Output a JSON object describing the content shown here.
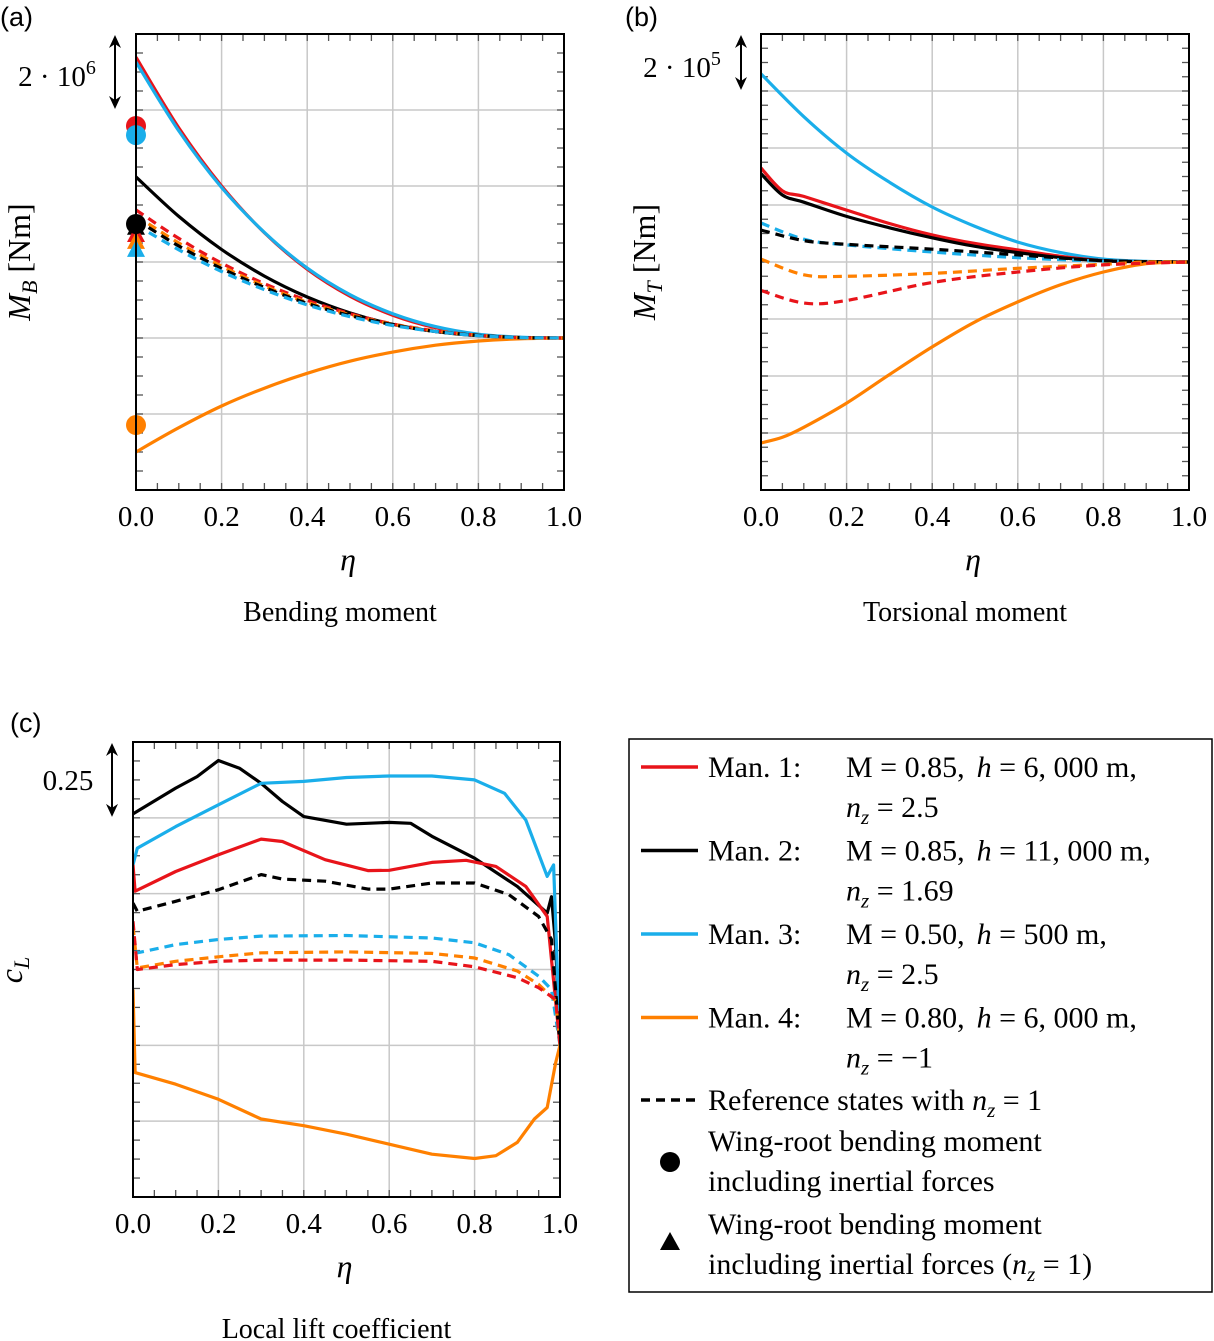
{
  "colors": {
    "man1": "#e8141a",
    "man2": "#000000",
    "man3": "#1aaeea",
    "man4": "#ff8000",
    "grid": "#c8c8c8"
  },
  "chart_data": [
    {
      "id": "a",
      "type": "line",
      "panel_label": "(a)",
      "title": "Bending moment",
      "xlabel": "η",
      "ylabel_main": "M",
      "ylabel_sub": "B",
      "ylabel_unit": " [Nm]",
      "scale_bar": {
        "base": "2 · 10",
        "exp": "6",
        "value": 2000000
      },
      "y_units": "1e6 Nm",
      "xlim": [
        0,
        1
      ],
      "ylim": [
        -4,
        8
      ],
      "ygrid_step": 2,
      "grid": true,
      "xticks": [
        "0.0",
        "0.2",
        "0.4",
        "0.6",
        "0.8",
        "1.0"
      ],
      "series": [
        {
          "name": "Man. 1",
          "color": "man1",
          "dash": false,
          "x": [
            0,
            0.1,
            0.2,
            0.3,
            0.4,
            0.5,
            0.6,
            0.7,
            0.8,
            0.9,
            1
          ],
          "y": [
            7.39,
            5.53,
            4.0,
            2.77,
            1.81,
            1.1,
            0.6,
            0.27,
            0.09,
            0.01,
            0
          ]
        },
        {
          "name": "Man. 3",
          "color": "man3",
          "dash": false,
          "x": [
            0,
            0.1,
            0.2,
            0.3,
            0.4,
            0.5,
            0.6,
            0.7,
            0.8,
            0.9,
            1
          ],
          "y": [
            7.26,
            5.45,
            3.96,
            2.78,
            1.84,
            1.14,
            0.64,
            0.3,
            0.1,
            0.02,
            0
          ]
        },
        {
          "name": "Man. 2",
          "color": "man2",
          "dash": false,
          "x": [
            0,
            0.1,
            0.2,
            0.3,
            0.4,
            0.5,
            0.6,
            0.7,
            0.8,
            0.9,
            1
          ],
          "y": [
            4.24,
            3.2,
            2.33,
            1.63,
            1.08,
            0.66,
            0.36,
            0.17,
            0.06,
            0.01,
            0
          ]
        },
        {
          "name": "Man. 4",
          "color": "man4",
          "dash": false,
          "x": [
            0,
            0.1,
            0.2,
            0.3,
            0.4,
            0.5,
            0.6,
            0.7,
            0.8,
            0.9,
            1
          ],
          "y": [
            -3.0,
            -2.36,
            -1.79,
            -1.32,
            -0.93,
            -0.61,
            -0.37,
            -0.19,
            -0.08,
            -0.02,
            0
          ]
        },
        {
          "name": "Man. 1 ref",
          "color": "man1",
          "dash": true,
          "x": [
            0,
            0.1,
            0.2,
            0.3,
            0.4,
            0.5,
            0.6,
            0.7,
            0.8,
            0.9,
            1
          ],
          "y": [
            3.37,
            2.62,
            1.97,
            1.43,
            0.99,
            0.64,
            0.37,
            0.19,
            0.07,
            0.01,
            0
          ]
        },
        {
          "name": "Man. 4 ref",
          "color": "man4",
          "dash": true,
          "x": [
            0,
            0.1,
            0.2,
            0.3,
            0.4,
            0.5,
            0.6,
            0.7,
            0.8,
            0.9,
            1
          ],
          "y": [
            3.22,
            2.5,
            1.89,
            1.37,
            0.94,
            0.61,
            0.36,
            0.18,
            0.07,
            0.01,
            0
          ]
        },
        {
          "name": "Man. 2 ref",
          "color": "man2",
          "dash": true,
          "x": [
            0,
            0.1,
            0.2,
            0.3,
            0.4,
            0.5,
            0.6,
            0.7,
            0.8,
            0.9,
            1
          ],
          "y": [
            3.12,
            2.42,
            1.83,
            1.33,
            0.91,
            0.59,
            0.35,
            0.17,
            0.07,
            0.01,
            0
          ]
        },
        {
          "name": "Man. 3 ref",
          "color": "man3",
          "dash": true,
          "x": [
            0,
            0.1,
            0.2,
            0.3,
            0.4,
            0.5,
            0.6,
            0.7,
            0.8,
            0.9,
            1
          ],
          "y": [
            2.98,
            2.32,
            1.75,
            1.27,
            0.87,
            0.56,
            0.33,
            0.17,
            0.06,
            0.01,
            0
          ]
        }
      ],
      "root_circles": [
        {
          "color": "man1",
          "y": 5.58
        },
        {
          "color": "man3",
          "y": 5.34
        },
        {
          "color": "man2",
          "y": 3.0
        },
        {
          "color": "man4",
          "y": -2.29
        }
      ],
      "root_triangles": [
        {
          "color": "man2",
          "y": 2.9
        },
        {
          "color": "man1",
          "y": 2.71
        },
        {
          "color": "man4",
          "y": 2.53
        },
        {
          "color": "man3",
          "y": 2.32
        }
      ]
    },
    {
      "id": "b",
      "type": "line",
      "panel_label": "(b)",
      "title": "Torsional moment",
      "xlabel": "η",
      "ylabel_main": "M",
      "ylabel_sub": "T",
      "ylabel_unit": " [Nm]",
      "scale_bar": {
        "base": "2 · 10",
        "exp": "5",
        "value": 200000
      },
      "y_units": "1e5 Nm",
      "xlim": [
        0,
        1
      ],
      "ylim": [
        -8,
        8
      ],
      "ygrid_step": 2,
      "grid": true,
      "xticks": [
        "0.0",
        "0.2",
        "0.4",
        "0.6",
        "0.8",
        "1.0"
      ],
      "series": [
        {
          "name": "Man. 3",
          "color": "man3",
          "dash": false,
          "x": [
            0,
            0.1,
            0.2,
            0.3,
            0.4,
            0.5,
            0.6,
            0.7,
            0.8,
            0.9,
            1
          ],
          "y": [
            6.6,
            5.1,
            3.82,
            2.8,
            1.93,
            1.25,
            0.7,
            0.33,
            0.1,
            0.02,
            0
          ]
        },
        {
          "name": "Man. 1",
          "color": "man1",
          "dash": false,
          "x": [
            0,
            0.05,
            0.1,
            0.2,
            0.3,
            0.4,
            0.5,
            0.6,
            0.7,
            0.8,
            0.9,
            1
          ],
          "y": [
            3.3,
            2.5,
            2.3,
            1.82,
            1.35,
            0.95,
            0.65,
            0.42,
            0.2,
            0.05,
            0.01,
            0
          ]
        },
        {
          "name": "Man. 2",
          "color": "man2",
          "dash": false,
          "x": [
            0,
            0.05,
            0.1,
            0.2,
            0.3,
            0.4,
            0.5,
            0.6,
            0.7,
            0.8,
            0.9,
            1
          ],
          "y": [
            3.1,
            2.35,
            2.1,
            1.6,
            1.2,
            0.85,
            0.55,
            0.33,
            0.15,
            0.04,
            0.01,
            0
          ]
        },
        {
          "name": "Man. 4",
          "color": "man4",
          "dash": false,
          "x": [
            0,
            0.05,
            0.1,
            0.2,
            0.3,
            0.4,
            0.5,
            0.6,
            0.7,
            0.8,
            0.9,
            1
          ],
          "y": [
            -6.35,
            -6.15,
            -5.8,
            -4.95,
            -3.95,
            -2.98,
            -2.1,
            -1.4,
            -0.8,
            -0.35,
            -0.06,
            0
          ]
        },
        {
          "name": "Man. 3 ref",
          "color": "man3",
          "dash": true,
          "x": [
            0,
            0.1,
            0.2,
            0.4,
            0.6,
            0.8,
            1
          ],
          "y": [
            1.37,
            0.8,
            0.6,
            0.35,
            0.15,
            0.03,
            0
          ]
        },
        {
          "name": "Man. 2 ref",
          "color": "man2",
          "dash": true,
          "x": [
            0,
            0.1,
            0.2,
            0.4,
            0.6,
            0.8,
            1
          ],
          "y": [
            1.12,
            0.75,
            0.62,
            0.45,
            0.25,
            0.05,
            0
          ]
        },
        {
          "name": "Man. 4 ref",
          "color": "man4",
          "dash": true,
          "x": [
            0,
            0.1,
            0.2,
            0.4,
            0.6,
            0.8,
            0.9,
            1
          ],
          "y": [
            0.1,
            -0.45,
            -0.5,
            -0.4,
            -0.22,
            -0.08,
            0,
            0
          ]
        },
        {
          "name": "Man. 1 ref",
          "color": "man1",
          "dash": true,
          "x": [
            0,
            0.1,
            0.2,
            0.4,
            0.6,
            0.8,
            1
          ],
          "y": [
            -1.0,
            -1.44,
            -1.35,
            -0.72,
            -0.35,
            -0.1,
            0
          ]
        }
      ]
    },
    {
      "id": "c",
      "type": "line",
      "panel_label": "(c)",
      "title": "Local lift coefficient",
      "xlabel": "η",
      "ylabel_main": "c",
      "ylabel_sub": "L",
      "ylabel_unit": "",
      "scale_bar": {
        "base": "0.25",
        "exp": "",
        "value": 0.25
      },
      "xlim": [
        0,
        1
      ],
      "ylim": [
        -0.5,
        1.0
      ],
      "ygrid_step": 0.25,
      "grid": true,
      "xticks": [
        "0.0",
        "0.2",
        "0.4",
        "0.6",
        "0.8",
        "1.0"
      ],
      "series": [
        {
          "name": "Man. 2",
          "color": "man2",
          "dash": false,
          "x": [
            0,
            0.1,
            0.15,
            0.2,
            0.25,
            0.3,
            0.35,
            0.4,
            0.5,
            0.6,
            0.65,
            0.7,
            0.8,
            0.9,
            0.97,
            0.98,
            0.99,
            1
          ],
          "y": [
            0.763,
            0.848,
            0.886,
            0.939,
            0.913,
            0.864,
            0.804,
            0.754,
            0.729,
            0.735,
            0.732,
            0.689,
            0.617,
            0.524,
            0.436,
            0.49,
            0.327,
            0
          ]
        },
        {
          "name": "Man. 3",
          "color": "man3",
          "dash": false,
          "x": [
            0,
            0.01,
            0.1,
            0.2,
            0.3,
            0.4,
            0.5,
            0.6,
            0.7,
            0.8,
            0.87,
            0.92,
            0.97,
            0.985,
            1
          ],
          "y": [
            0.595,
            0.65,
            0.721,
            0.793,
            0.864,
            0.87,
            0.883,
            0.888,
            0.888,
            0.875,
            0.831,
            0.743,
            0.557,
            0.595,
            0
          ]
        },
        {
          "name": "Man. 1",
          "color": "man1",
          "dash": false,
          "x": [
            0,
            0.005,
            0.1,
            0.2,
            0.3,
            0.35,
            0.45,
            0.55,
            0.6,
            0.7,
            0.78,
            0.85,
            0.92,
            0.97,
            1
          ],
          "y": [
            0.595,
            0.508,
            0.573,
            0.628,
            0.68,
            0.672,
            0.612,
            0.576,
            0.577,
            0.603,
            0.61,
            0.59,
            0.524,
            0.425,
            0
          ]
        },
        {
          "name": "Man. 2 ref",
          "color": "man2",
          "dash": true,
          "x": [
            0,
            0.01,
            0.1,
            0.2,
            0.3,
            0.35,
            0.45,
            0.55,
            0.6,
            0.7,
            0.8,
            0.88,
            0.95,
            0.98,
            1
          ],
          "y": [
            0.469,
            0.442,
            0.475,
            0.513,
            0.563,
            0.548,
            0.541,
            0.515,
            0.515,
            0.535,
            0.535,
            0.497,
            0.425,
            0.349,
            0
          ]
        },
        {
          "name": "Man. 3 ref",
          "color": "man3",
          "dash": true,
          "x": [
            0,
            0.01,
            0.1,
            0.2,
            0.3,
            0.5,
            0.7,
            0.8,
            0.88,
            0.95,
            0.98,
            1
          ],
          "y": [
            0.36,
            0.305,
            0.332,
            0.349,
            0.36,
            0.362,
            0.354,
            0.338,
            0.299,
            0.228,
            0.184,
            0
          ]
        },
        {
          "name": "Man. 4 ref",
          "color": "man4",
          "dash": true,
          "x": [
            0,
            0.01,
            0.1,
            0.2,
            0.3,
            0.5,
            0.7,
            0.8,
            0.9,
            0.95,
            0.99,
            1
          ],
          "y": [
            0.393,
            0.255,
            0.277,
            0.292,
            0.305,
            0.308,
            0.303,
            0.288,
            0.245,
            0.201,
            0.146,
            0
          ]
        },
        {
          "name": "Man. 1 ref",
          "color": "man1",
          "dash": true,
          "x": [
            0,
            0.01,
            0.1,
            0.2,
            0.3,
            0.5,
            0.7,
            0.8,
            0.9,
            0.95,
            0.99,
            1
          ],
          "y": [
            0.409,
            0.25,
            0.266,
            0.277,
            0.281,
            0.281,
            0.277,
            0.259,
            0.223,
            0.19,
            0.151,
            0
          ]
        },
        {
          "name": "Man. 4",
          "color": "man4",
          "dash": false,
          "x": [
            0,
            0.005,
            0.1,
            0.2,
            0.3,
            0.4,
            0.5,
            0.6,
            0.7,
            0.8,
            0.85,
            0.9,
            0.94,
            0.97,
            0.99,
            1
          ],
          "y": [
            0.184,
            -0.09,
            -0.128,
            -0.178,
            -0.243,
            -0.265,
            -0.293,
            -0.326,
            -0.359,
            -0.373,
            -0.364,
            -0.32,
            -0.243,
            -0.205,
            -0.057,
            0
          ]
        }
      ]
    }
  ],
  "legend": {
    "entries": [
      {
        "label": "Man. 1:",
        "mach": "M = 0.85,",
        "h_var": "h",
        "alt": " = 6, 000 m,",
        "nz_var": "n",
        "nz_sub": "z",
        "nz": " = 2.5",
        "color": "man1"
      },
      {
        "label": "Man. 2:",
        "mach": "M = 0.85,",
        "h_var": "h",
        "alt": " = 11, 000 m,",
        "nz_var": "n",
        "nz_sub": "z",
        "nz": " = 1.69",
        "color": "man2"
      },
      {
        "label": "Man. 3:",
        "mach": "M = 0.50,",
        "h_var": "h",
        "alt": " = 500 m,",
        "nz_var": "n",
        "nz_sub": "z",
        "nz": " = 2.5",
        "color": "man3"
      },
      {
        "label": "Man. 4:",
        "mach": "M = 0.80,",
        "h_var": "h",
        "alt": " = 6, 000 m,",
        "nz_var": "n",
        "nz_sub": "z",
        "nz": " = −1",
        "color": "man4"
      }
    ],
    "reference": {
      "text": "Reference states with ",
      "nz_var": "n",
      "nz_sub": "z",
      "nz": " = 1"
    },
    "circle": {
      "line1": "Wing-root bending moment",
      "line2": "including inertial forces"
    },
    "triangle": {
      "line1": "Wing-root bending moment",
      "line2": "including inertial forces (",
      "nz_var": "n",
      "nz_sub": "z",
      "nz": " = 1)"
    }
  }
}
